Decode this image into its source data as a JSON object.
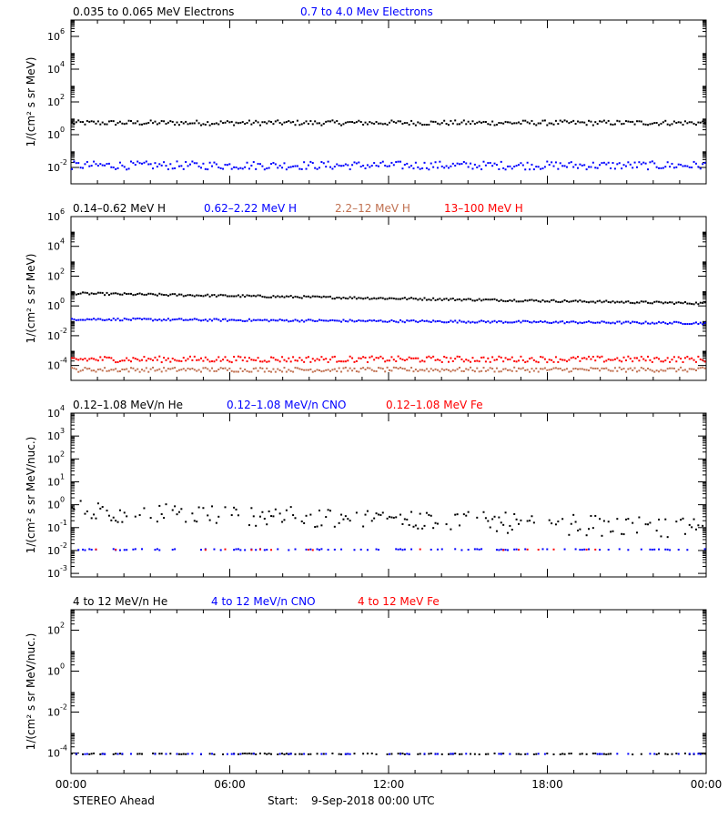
{
  "footer": {
    "spacecraft": "STEREO Ahead",
    "start_label": "Start:",
    "start_value": "9-Sep-2018 00:00 UTC"
  },
  "chart_data": [
    {
      "type": "scatter",
      "ylabel": "1/(cm² s sr MeV)",
      "yscale": "log",
      "ylim": [
        0.001,
        10000000
      ],
      "yticks": [
        {
          "text": "10",
          "exp": "-2"
        },
        {
          "text": "10",
          "exp": "0"
        },
        {
          "text": "10",
          "exp": "2"
        },
        {
          "text": "10",
          "exp": "4"
        },
        {
          "text": "10",
          "exp": "6"
        }
      ],
      "series": [
        {
          "name": "0.035 to 0.065 MeV Electrons",
          "color": "#000000",
          "points": "flat:6:0.3"
        },
        {
          "name": "0.7 to 4.0 Mev Electrons",
          "color": "#0000ff",
          "points": "flat:0.015:0.5"
        }
      ]
    },
    {
      "type": "scatter",
      "ylabel": "1/(cm² s sr MeV)",
      "yscale": "log",
      "ylim": [
        1e-05,
        1000000
      ],
      "yticks": [
        {
          "text": "10",
          "exp": "-4"
        },
        {
          "text": "10",
          "exp": "-2"
        },
        {
          "text": "10",
          "exp": "0"
        },
        {
          "text": "10",
          "exp": "2"
        },
        {
          "text": "10",
          "exp": "4"
        },
        {
          "text": "10",
          "exp": "6"
        }
      ],
      "series": [
        {
          "name": "0.14–0.62 MeV H",
          "color": "#000000",
          "points": "trend:8:1.7"
        },
        {
          "name": "0.62–2.22 MeV H",
          "color": "#0000ff",
          "points": "trend:0.15:0.08"
        },
        {
          "name": "2.2–12 MeV H",
          "color": "#c07050",
          "points": "flat:0.00006:0.3"
        },
        {
          "name": "13–100 MeV H",
          "color": "#ff0000",
          "points": "flat:0.0003:0.4"
        }
      ]
    },
    {
      "type": "scatter",
      "ylabel": "1/(cm² s sr MeV/nuc.)",
      "yscale": "log",
      "ylim": [
        0.0007,
        10000
      ],
      "yticks": [
        {
          "text": "10",
          "exp": "-3"
        },
        {
          "text": "10",
          "exp": "-2"
        },
        {
          "text": "10",
          "exp": "-1"
        },
        {
          "text": "10",
          "exp": "0"
        },
        {
          "text": "10",
          "exp": "1"
        },
        {
          "text": "10",
          "exp": "2"
        },
        {
          "text": "10",
          "exp": "3"
        },
        {
          "text": "10",
          "exp": "4"
        }
      ],
      "series": [
        {
          "name": "0.12–1.08 MeV/n He",
          "color": "#000000",
          "points": "sparse:trend:0.6:0.1:0.7"
        },
        {
          "name": "0.12–1.08 MeV/n CNO",
          "color": "#0000ff",
          "points": "sparse:flat:0.012:0.05:0.35"
        },
        {
          "name": "0.12–1.08 MeV Fe",
          "color": "#ff0000",
          "points": "sparse:flat:0.012:0.05:0.05"
        }
      ]
    },
    {
      "type": "scatter",
      "ylabel": "1/(cm² s sr MeV/nuc.)",
      "yscale": "log",
      "ylim": [
        1e-05,
        1000
      ],
      "yticks": [
        {
          "text": "10",
          "exp": "-4"
        },
        {
          "text": "10",
          "exp": "-2"
        },
        {
          "text": "10",
          "exp": "0"
        },
        {
          "text": "10",
          "exp": "2"
        }
      ],
      "series": [
        {
          "name": "4 to 12 MeV/n He",
          "color": "#000000",
          "points": "sparse:flat:0.0001:0.05:0.45"
        },
        {
          "name": "4 to 12 MeV/n CNO",
          "color": "#0000ff",
          "points": "sparse:flat:0.0001:0.02:0.2"
        },
        {
          "name": "4 to 12 MeV Fe",
          "color": "#ff0000",
          "points": "sparse:flat:0.0001:0.02:0.0"
        }
      ]
    }
  ],
  "x_axis": {
    "ticks": [
      "00:00",
      "06:00",
      "12:00",
      "18:00",
      "00:00"
    ],
    "range_hours": [
      0,
      24
    ]
  }
}
